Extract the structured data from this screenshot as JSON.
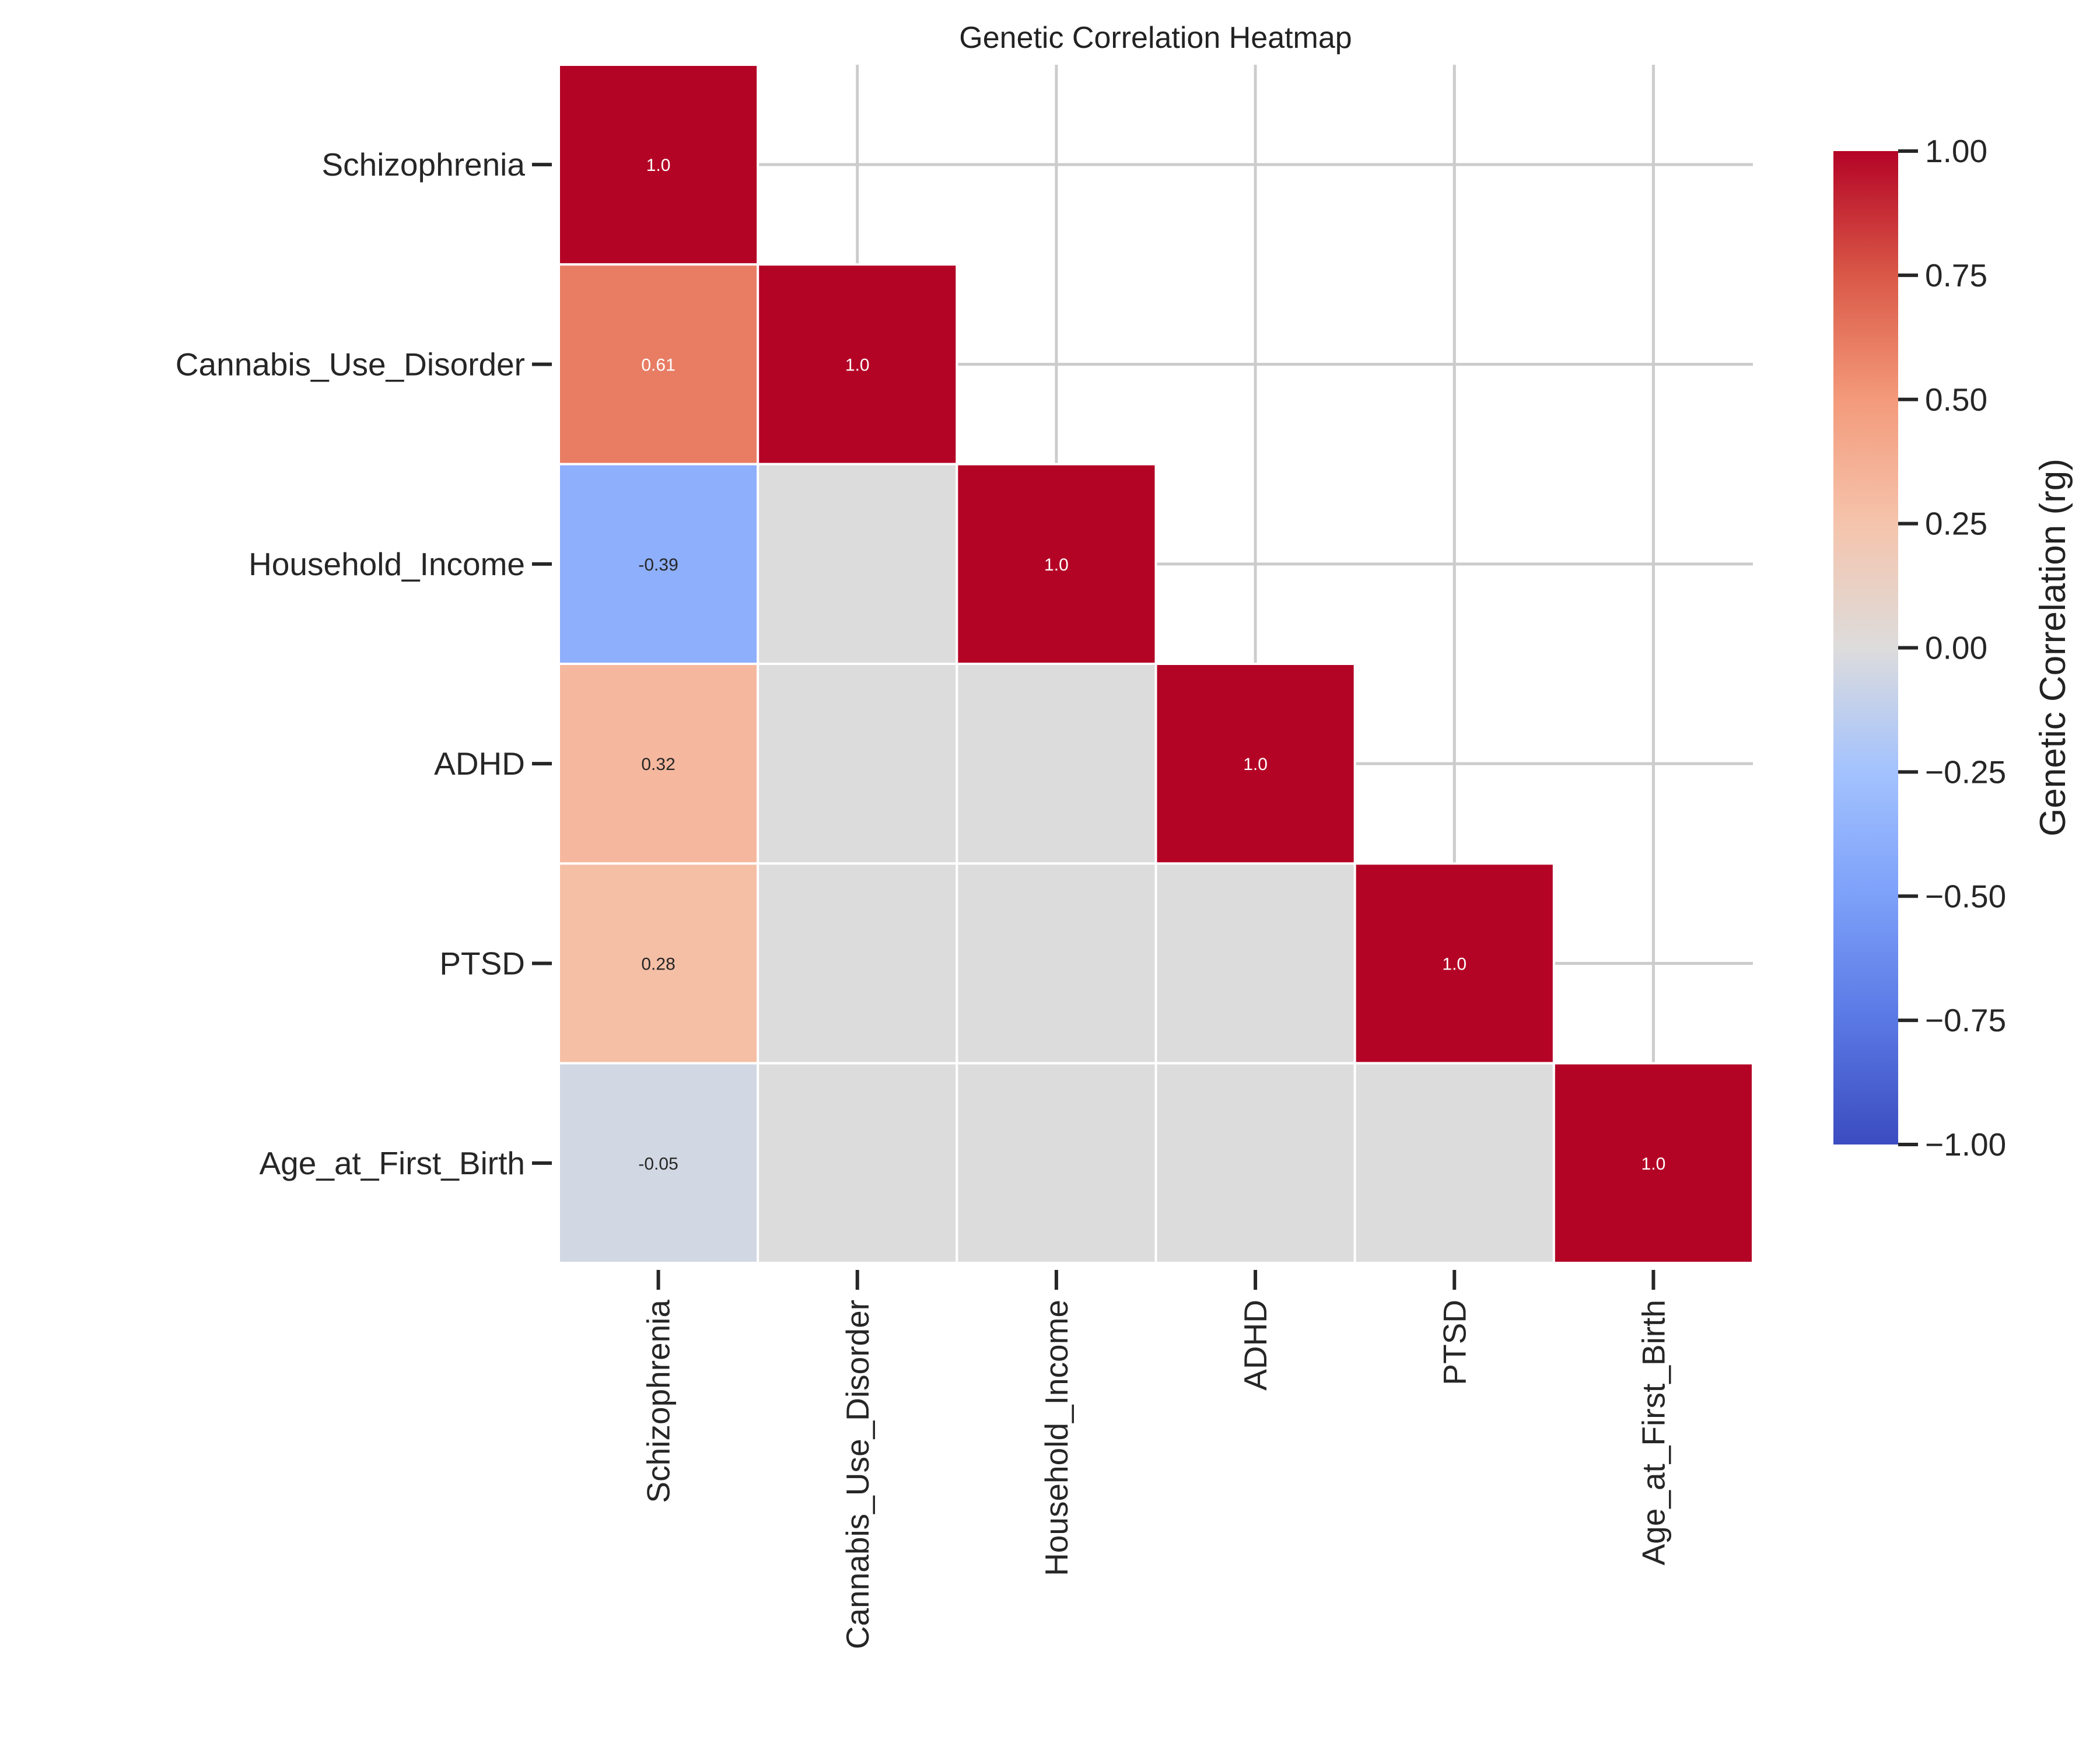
{
  "chart_data": {
    "type": "heatmap",
    "title": "Genetic Correlation Heatmap",
    "row_labels": [
      "Schizophrenia",
      "Cannabis_Use_Disorder",
      "Household_Income",
      "ADHD",
      "PTSD",
      "Age_at_First_Birth"
    ],
    "col_labels": [
      "Schizophrenia",
      "Cannabis_Use_Disorder",
      "Household_Income",
      "ADHD",
      "PTSD",
      "Age_at_First_Birth"
    ],
    "values": [
      [
        1.0,
        null,
        null,
        null,
        null,
        null
      ],
      [
        0.61,
        1.0,
        null,
        null,
        null,
        null
      ],
      [
        -0.39,
        null,
        1.0,
        null,
        null,
        null
      ],
      [
        0.32,
        null,
        null,
        1.0,
        null,
        null
      ],
      [
        0.28,
        null,
        null,
        null,
        1.0,
        null
      ],
      [
        -0.05,
        null,
        null,
        null,
        null,
        1.0
      ]
    ],
    "mask": "upper triangle",
    "colormap": "coolwarm",
    "vmin": -1.0,
    "vmax": 1.0,
    "colorbar": {
      "label": "Genetic Correlation (rg)",
      "ticks": [
        "1.00",
        "0.75",
        "0.50",
        "0.25",
        "0.00",
        "−0.25",
        "−0.50",
        "−0.75",
        "−1.00"
      ]
    },
    "grid": true,
    "unlabeled_cell_color": "#dcdcdc"
  }
}
